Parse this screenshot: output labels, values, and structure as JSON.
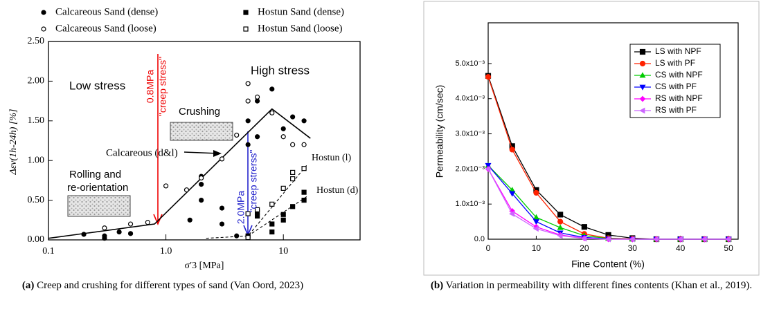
{
  "chart_data": [
    {
      "type": "scatter",
      "caption_label": "(a)",
      "caption": "Creep and crushing for different types of sand (Van Oord, 2023)",
      "xlabel": "σ′3  [MPa]",
      "ylabel": "Δεv(1h-24h) [%]",
      "xscale": "log",
      "xlim": [
        0.1,
        45
      ],
      "xticks": [
        0.1,
        {
          "value": 1,
          "label": "1.0"
        },
        10
      ],
      "ylim": [
        0,
        2.5
      ],
      "yticks": [
        {
          "value": 0,
          "label": "0.00"
        },
        {
          "value": 0.5,
          "label": "0.50"
        },
        {
          "value": 1,
          "label": "1.00"
        },
        {
          "value": 1.5,
          "label": "1.50"
        },
        {
          "value": 2,
          "label": "2.00"
        },
        {
          "value": 2.5,
          "label": "2.50"
        }
      ],
      "series": [
        {
          "name": "Calcareous Sand (dense)",
          "marker": "circle-filled",
          "x": [
            0.2,
            0.3,
            0.3,
            0.4,
            0.5,
            1.6,
            2,
            2,
            2,
            3,
            3,
            4,
            5,
            5,
            6,
            6,
            8,
            10,
            12,
            15
          ],
          "values": [
            0.07,
            0.05,
            0.02,
            0.1,
            0.08,
            0.25,
            0.5,
            0.7,
            0.8,
            0.4,
            0.2,
            0.05,
            1.2,
            1.5,
            1.3,
            1.75,
            1.9,
            1.4,
            1.55,
            1.5
          ]
        },
        {
          "name": "Calcareous Sand (loose)",
          "marker": "circle-open",
          "x": [
            0.3,
            0.5,
            0.7,
            1,
            1.5,
            2,
            3,
            4,
            5,
            5,
            6,
            8,
            10,
            12,
            15
          ],
          "values": [
            0.15,
            0.2,
            0.22,
            0.68,
            0.63,
            0.78,
            1.02,
            1.32,
            1.97,
            1.75,
            1.8,
            1.6,
            1.3,
            1.2,
            1.2
          ]
        },
        {
          "name": "Hostun Sand (dense)",
          "marker": "square-filled",
          "x": [
            5,
            6,
            6,
            8,
            8,
            10,
            10,
            12,
            15,
            15
          ],
          "values": [
            0.05,
            0.3,
            0.35,
            0.1,
            0.2,
            0.25,
            0.32,
            0.42,
            0.5,
            0.6
          ]
        },
        {
          "name": "Hostun Sand (loose)",
          "marker": "square-open",
          "x": [
            5,
            5,
            6,
            8,
            10,
            12,
            12,
            15
          ],
          "values": [
            0.03,
            0.33,
            0.38,
            0.45,
            0.65,
            0.77,
            0.85,
            0.9
          ]
        }
      ],
      "trend_lines": [
        {
          "style": "solid",
          "x": [
            0.1,
            0.8,
            8,
            17
          ],
          "values": [
            0.02,
            0.2,
            1.65,
            1.28
          ]
        },
        {
          "style": "dashed",
          "x": [
            2.2,
            5,
            16
          ],
          "values": [
            0.02,
            0.05,
            0.95
          ]
        },
        {
          "style": "dashed",
          "x": [
            5,
            16
          ],
          "values": [
            0.05,
            0.55
          ]
        }
      ],
      "annotations": [
        "Low stress",
        "High stress",
        "Crushing",
        "Rolling and",
        "re-orientation",
        "0.8MPa",
        "\"creep stress\"",
        "2.0MPa",
        "\"creep strerss\"",
        "Calcareous (d&l)",
        "Hostun (l)",
        "Hostun (d)"
      ]
    },
    {
      "type": "line",
      "caption_label": "(b)",
      "caption": "Variation in permeability with different fines contents (Khan et al., 2019).",
      "xlabel": "Fine Content (%)",
      "ylabel": "Permeability (cm/sec)",
      "xlim": [
        0,
        52
      ],
      "xticks": [
        0,
        10,
        20,
        30,
        40,
        50
      ],
      "ylim": [
        0,
        0.00616
      ],
      "yticks": [
        {
          "value": 0,
          "label": "0.0"
        },
        {
          "value": 0.001,
          "label": "1.0x10⁻³"
        },
        {
          "value": 0.002,
          "label": "2.0x10⁻³"
        },
        {
          "value": 0.003,
          "label": "3.0x10⁻³"
        },
        {
          "value": 0.004,
          "label": "4.0x10⁻³"
        },
        {
          "value": 0.005,
          "label": "5.0x10⁻³"
        }
      ],
      "x": [
        0,
        5,
        10,
        15,
        20,
        25,
        30,
        35,
        40,
        45,
        50
      ],
      "series": [
        {
          "name": "LS with NPF",
          "color": "#000000",
          "marker": "square",
          "values": [
            0.00465,
            0.00265,
            0.0014,
            0.0007,
            0.00035,
            0.00012,
            3e-05,
            0,
            0,
            0,
            0
          ]
        },
        {
          "name": "LS with PF",
          "color": "#ff2200",
          "marker": "circle",
          "values": [
            0.00462,
            0.00255,
            0.00132,
            0.0005,
            0.00015,
            3e-05,
            1e-05,
            0,
            0,
            0,
            0
          ]
        },
        {
          "name": "CS with NPF",
          "color": "#00cc00",
          "marker": "triangle-up",
          "values": [
            0.0021,
            0.0014,
            0.00062,
            0.00033,
            0.0001,
            2e-05,
            0,
            0,
            0,
            0,
            0
          ]
        },
        {
          "name": "CS with PF",
          "color": "#0000ff",
          "marker": "triangle-down",
          "values": [
            0.0021,
            0.0013,
            0.0005,
            0.00018,
            5e-05,
            1e-05,
            0,
            0,
            0,
            0,
            0
          ]
        },
        {
          "name": "RS with NPF",
          "color": "#ff00ff",
          "marker": "diamond",
          "values": [
            0.002,
            0.0008,
            0.00035,
            0.00012,
            3e-05,
            0,
            0,
            0,
            0,
            0,
            0
          ]
        },
        {
          "name": "RS with PF",
          "color": "#cc66ff",
          "marker": "triangle-left",
          "values": [
            0.002,
            0.00072,
            0.0003,
            0.0001,
            2e-05,
            0,
            0,
            0,
            0,
            0,
            0
          ]
        }
      ],
      "legend": "upper right"
    }
  ]
}
